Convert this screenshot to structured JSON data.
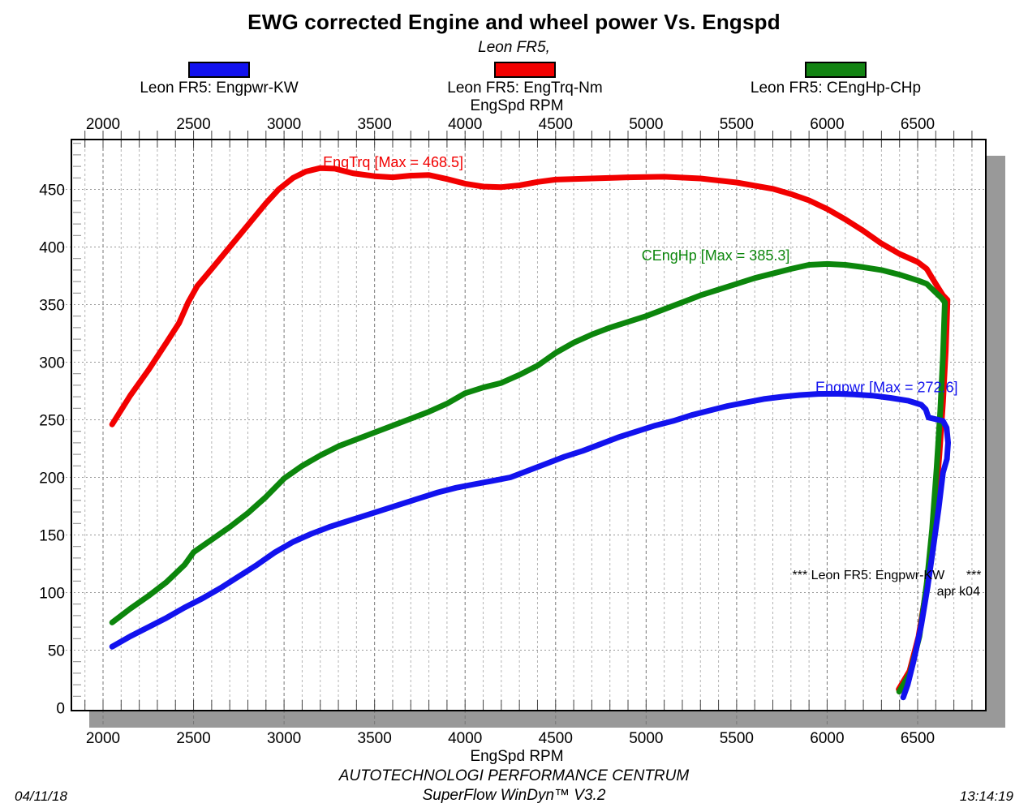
{
  "header": {
    "title": "EWG corrected Engine and wheel power Vs. Engspd",
    "subtitle": "Leon FR5,"
  },
  "legend": {
    "items": [
      {
        "label": "Leon FR5: Engpwr-KW",
        "color": "#1212ee"
      },
      {
        "label": "Leon FR5: EngTrq-Nm",
        "color": "#f20000"
      },
      {
        "label": "Leon FR5: CEngHp-CHp",
        "color": "#128312"
      }
    ]
  },
  "chart_data": {
    "type": "line",
    "xlabel_top": "EngSpd RPM",
    "xlabel_bottom": "EngSpd RPM",
    "xlim": [
      1825,
      6876
    ],
    "ylim": [
      0,
      493
    ],
    "x_ticks": [
      2000,
      2500,
      3000,
      3500,
      4000,
      4500,
      5000,
      5500,
      6000,
      6500
    ],
    "x_minor_step": 100,
    "y_ticks": [
      0,
      50,
      100,
      150,
      200,
      250,
      300,
      350,
      400,
      450
    ],
    "y_minor_step": 10,
    "grid": true,
    "series": [
      {
        "name": "EngTrq-Nm",
        "color": "#f20000",
        "max": 468.5,
        "points": [
          [
            2050,
            246
          ],
          [
            2150,
            271
          ],
          [
            2250,
            293
          ],
          [
            2350,
            317
          ],
          [
            2420,
            334
          ],
          [
            2470,
            352
          ],
          [
            2520,
            366
          ],
          [
            2600,
            381
          ],
          [
            2700,
            400
          ],
          [
            2800,
            419
          ],
          [
            2900,
            438
          ],
          [
            2970,
            450
          ],
          [
            3050,
            460
          ],
          [
            3120,
            465.5
          ],
          [
            3200,
            468.5
          ],
          [
            3280,
            468
          ],
          [
            3380,
            464
          ],
          [
            3500,
            461.5
          ],
          [
            3600,
            460.5
          ],
          [
            3700,
            462
          ],
          [
            3800,
            462.5
          ],
          [
            3900,
            459
          ],
          [
            4000,
            455
          ],
          [
            4100,
            452.5
          ],
          [
            4200,
            452
          ],
          [
            4300,
            453.5
          ],
          [
            4400,
            456.5
          ],
          [
            4500,
            458.5
          ],
          [
            4700,
            459.5
          ],
          [
            4900,
            460.5
          ],
          [
            5100,
            461
          ],
          [
            5300,
            459.5
          ],
          [
            5500,
            456
          ],
          [
            5700,
            450.5
          ],
          [
            5800,
            446
          ],
          [
            5900,
            440.5
          ],
          [
            6000,
            433
          ],
          [
            6100,
            424
          ],
          [
            6200,
            414
          ],
          [
            6300,
            403
          ],
          [
            6400,
            394
          ],
          [
            6500,
            387
          ],
          [
            6550,
            381
          ],
          [
            6600,
            368
          ],
          [
            6640,
            358
          ],
          [
            6665,
            354
          ],
          [
            6655,
            310
          ],
          [
            6640,
            265
          ],
          [
            6620,
            220
          ],
          [
            6600,
            180
          ],
          [
            6575,
            140
          ],
          [
            6545,
            100
          ],
          [
            6505,
            62
          ],
          [
            6455,
            32
          ],
          [
            6395,
            16
          ]
        ]
      },
      {
        "name": "CEngHp-CHp",
        "color": "#0c860c",
        "max": 385.3,
        "points": [
          [
            2050,
            74
          ],
          [
            2150,
            86
          ],
          [
            2250,
            97
          ],
          [
            2350,
            109
          ],
          [
            2450,
            124
          ],
          [
            2500,
            135
          ],
          [
            2600,
            146
          ],
          [
            2700,
            157
          ],
          [
            2800,
            169
          ],
          [
            2900,
            183
          ],
          [
            3000,
            199
          ],
          [
            3100,
            210
          ],
          [
            3200,
            219
          ],
          [
            3300,
            227
          ],
          [
            3400,
            233
          ],
          [
            3500,
            239
          ],
          [
            3600,
            245
          ],
          [
            3700,
            251
          ],
          [
            3800,
            257
          ],
          [
            3900,
            264
          ],
          [
            4000,
            273
          ],
          [
            4100,
            278
          ],
          [
            4200,
            282
          ],
          [
            4300,
            289
          ],
          [
            4400,
            297
          ],
          [
            4500,
            308
          ],
          [
            4600,
            317
          ],
          [
            4700,
            324
          ],
          [
            4800,
            330
          ],
          [
            4900,
            335
          ],
          [
            5000,
            340
          ],
          [
            5100,
            346
          ],
          [
            5200,
            352
          ],
          [
            5300,
            358
          ],
          [
            5400,
            363
          ],
          [
            5500,
            368
          ],
          [
            5600,
            373
          ],
          [
            5700,
            377
          ],
          [
            5800,
            381
          ],
          [
            5900,
            384.5
          ],
          [
            6000,
            385.3
          ],
          [
            6100,
            384.5
          ],
          [
            6200,
            382.5
          ],
          [
            6300,
            380
          ],
          [
            6400,
            376
          ],
          [
            6500,
            371
          ],
          [
            6550,
            368
          ],
          [
            6590,
            362
          ],
          [
            6630,
            356
          ],
          [
            6650,
            352
          ],
          [
            6640,
            305
          ],
          [
            6625,
            258
          ],
          [
            6605,
            208
          ],
          [
            6580,
            155
          ],
          [
            6550,
            108
          ],
          [
            6510,
            62
          ],
          [
            6458,
            30
          ],
          [
            6398,
            14
          ]
        ]
      },
      {
        "name": "Engpwr-KW",
        "color": "#1212ee",
        "max": 272.6,
        "points": [
          [
            2050,
            53
          ],
          [
            2150,
            62
          ],
          [
            2250,
            70
          ],
          [
            2350,
            78
          ],
          [
            2450,
            87
          ],
          [
            2550,
            95
          ],
          [
            2650,
            104
          ],
          [
            2750,
            114
          ],
          [
            2850,
            124
          ],
          [
            2950,
            135
          ],
          [
            3050,
            144
          ],
          [
            3150,
            151
          ],
          [
            3250,
            157
          ],
          [
            3350,
            162
          ],
          [
            3450,
            167
          ],
          [
            3550,
            172
          ],
          [
            3650,
            177
          ],
          [
            3750,
            182
          ],
          [
            3850,
            187
          ],
          [
            3950,
            191
          ],
          [
            4050,
            194
          ],
          [
            4150,
            197
          ],
          [
            4250,
            200
          ],
          [
            4350,
            206
          ],
          [
            4450,
            212
          ],
          [
            4550,
            218
          ],
          [
            4650,
            223
          ],
          [
            4750,
            229
          ],
          [
            4850,
            235
          ],
          [
            4950,
            240
          ],
          [
            5050,
            245
          ],
          [
            5150,
            249
          ],
          [
            5250,
            254
          ],
          [
            5350,
            258
          ],
          [
            5450,
            262
          ],
          [
            5550,
            265
          ],
          [
            5650,
            268
          ],
          [
            5750,
            270
          ],
          [
            5850,
            271.5
          ],
          [
            5950,
            272.5
          ],
          [
            6050,
            272.6
          ],
          [
            6150,
            272
          ],
          [
            6250,
            271
          ],
          [
            6350,
            269
          ],
          [
            6450,
            266.5
          ],
          [
            6520,
            263
          ],
          [
            6545,
            259
          ],
          [
            6560,
            252
          ],
          [
            6640,
            249
          ],
          [
            6660,
            243
          ],
          [
            6668,
            230
          ],
          [
            6662,
            216
          ],
          [
            6640,
            204
          ],
          [
            6615,
            172
          ],
          [
            6585,
            138
          ],
          [
            6555,
            105
          ],
          [
            6520,
            72
          ],
          [
            6480,
            42
          ],
          [
            6445,
            20
          ],
          [
            6420,
            9
          ]
        ]
      }
    ],
    "annotations": [
      {
        "name": "engtrq-max-label",
        "text": "EngTrq [Max = 468.5]",
        "color": "#f20000",
        "x": 3215,
        "y": 469.5,
        "anchor": "start",
        "size": 18
      },
      {
        "name": "cenghp-max-label",
        "text": "CEngHp [Max = 385.3]",
        "color": "#0c860c",
        "x": 4975,
        "y": 388.5,
        "anchor": "start",
        "size": 18
      },
      {
        "name": "engpwr-max-label",
        "text": "Engpwr [Max = 272.6]",
        "color": "#1212ee",
        "x": 5935,
        "y": 273.8,
        "anchor": "start",
        "size": 18
      },
      {
        "name": "run-note",
        "text": "*** Leon FR5: Engpwr-KW      ***",
        "color": "#000000",
        "x": 6852,
        "y": 111.5,
        "anchor": "end",
        "size": 16
      },
      {
        "name": "run-note-2",
        "text": "apr k04",
        "color": "#000000",
        "x": 6845,
        "y": 97.5,
        "anchor": "end",
        "size": 16
      }
    ]
  },
  "footer": {
    "date": "04/11/18",
    "center_line1": "AUTOTECHNOLOGI PERFORMANCE CENTRUM",
    "center_line2": "SuperFlow WinDyn™ V3.2",
    "time": "13:14:19"
  }
}
